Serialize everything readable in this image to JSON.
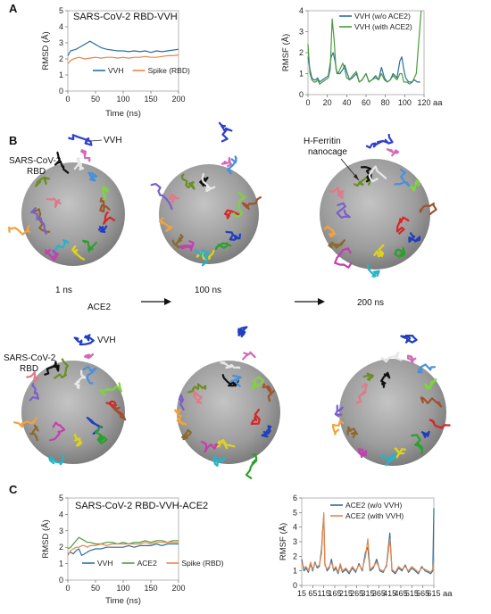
{
  "panels": {
    "A": "A",
    "B": "B",
    "C": "C"
  },
  "chart_data": [
    {
      "id": "a-rmsd",
      "type": "line",
      "title": "SARS-CoV-2 RBD-VVH",
      "xlabel": "Time (ns)",
      "ylabel": "RMSD (Å)",
      "xlim": [
        0,
        200
      ],
      "ylim": [
        0,
        5
      ],
      "xticks": [
        0,
        50,
        100,
        150,
        200
      ],
      "yticks": [
        0,
        1,
        2,
        3,
        4,
        5
      ],
      "grid": false,
      "legend": "bottom-center",
      "series": [
        {
          "name": "VVH",
          "color": "#2b6f9e",
          "x": [
            0,
            5,
            10,
            15,
            20,
            25,
            30,
            35,
            40,
            45,
            50,
            55,
            60,
            70,
            80,
            90,
            100,
            110,
            120,
            130,
            140,
            150,
            160,
            170,
            180,
            190,
            200
          ],
          "y": [
            2.2,
            2.5,
            2.55,
            2.6,
            2.7,
            2.8,
            2.9,
            3.0,
            3.1,
            3.0,
            2.9,
            2.8,
            2.7,
            2.6,
            2.55,
            2.5,
            2.5,
            2.45,
            2.5,
            2.45,
            2.5,
            2.4,
            2.5,
            2.45,
            2.5,
            2.55,
            2.6
          ]
        },
        {
          "name": "Spike (RBD)",
          "color": "#e8854a",
          "x": [
            0,
            5,
            10,
            15,
            20,
            25,
            30,
            40,
            50,
            60,
            70,
            80,
            90,
            100,
            110,
            120,
            130,
            140,
            150,
            160,
            170,
            180,
            190,
            200
          ],
          "y": [
            1.7,
            1.9,
            2.0,
            2.05,
            2.1,
            2.05,
            2.0,
            2.05,
            2.1,
            2.05,
            2.1,
            2.1,
            2.05,
            2.1,
            2.05,
            2.1,
            2.1,
            2.15,
            2.1,
            2.1,
            2.15,
            2.2,
            2.2,
            2.25
          ]
        }
      ]
    },
    {
      "id": "a-rmsf",
      "type": "line",
      "xlabel": "aa",
      "ylabel": "RMSF (Å)",
      "xlim": [
        0,
        120
      ],
      "ylim": [
        0,
        4
      ],
      "xticks": [
        0,
        20,
        40,
        60,
        80,
        100,
        120
      ],
      "yticks": [
        0,
        1,
        2,
        3,
        4
      ],
      "grid": false,
      "legend": "top-right",
      "series": [
        {
          "name": "VVH (w/o ACE2)",
          "color": "#2b6f9e",
          "x": [
            0,
            2,
            4,
            6,
            8,
            10,
            12,
            15,
            18,
            21,
            24,
            26,
            28,
            30,
            33,
            36,
            38,
            40,
            43,
            46,
            50,
            53,
            56,
            60,
            63,
            66,
            70,
            73,
            76,
            79,
            82,
            85,
            88,
            92,
            95,
            97,
            99,
            101,
            104,
            107,
            110,
            113,
            116
          ],
          "y": [
            1.8,
            1.2,
            0.8,
            0.7,
            0.7,
            0.8,
            0.6,
            0.7,
            0.8,
            0.9,
            1.8,
            2.0,
            1.6,
            1.0,
            1.0,
            1.2,
            1.4,
            1.1,
            0.7,
            0.8,
            1.0,
            0.6,
            0.7,
            1.0,
            0.6,
            0.7,
            0.9,
            0.7,
            1.3,
            0.8,
            0.6,
            0.7,
            1.0,
            0.8,
            1.6,
            1.8,
            1.2,
            0.8,
            0.6,
            0.6,
            0.7,
            0.6,
            0.6
          ]
        },
        {
          "name": "VVH (with ACE2)",
          "color": "#4e9a3b",
          "x": [
            0,
            2,
            4,
            6,
            8,
            10,
            12,
            15,
            18,
            21,
            23,
            25,
            27,
            29,
            31,
            34,
            36,
            38,
            40,
            43,
            46,
            50,
            53,
            56,
            60,
            63,
            66,
            70,
            73,
            76,
            79,
            82,
            85,
            88,
            92,
            95,
            97,
            99,
            102,
            105,
            108,
            112,
            115,
            117
          ],
          "y": [
            2.4,
            1.0,
            0.7,
            0.6,
            0.6,
            0.7,
            0.5,
            0.6,
            0.7,
            0.8,
            1.2,
            3.6,
            2.6,
            1.2,
            1.0,
            1.3,
            1.5,
            1.2,
            0.8,
            0.7,
            0.9,
            1.1,
            0.6,
            0.7,
            1.0,
            0.6,
            0.7,
            0.8,
            0.7,
            1.0,
            0.7,
            0.6,
            0.7,
            0.9,
            0.7,
            1.0,
            1.0,
            0.6,
            0.6,
            0.5,
            0.6,
            1.0,
            2.8,
            4.0
          ]
        }
      ]
    },
    {
      "id": "c-rmsd",
      "type": "line",
      "title": "SARS-CoV-2 RBD-VVH-ACE2",
      "xlabel": "Time (ns)",
      "ylabel": "RMSD (Å)",
      "xlim": [
        0,
        200
      ],
      "ylim": [
        0,
        5
      ],
      "xticks": [
        0,
        50,
        100,
        150,
        200
      ],
      "yticks": [
        0,
        1,
        2,
        3,
        4,
        5
      ],
      "grid": false,
      "legend": "bottom-center",
      "series": [
        {
          "name": "VVH",
          "color": "#2b6f9e",
          "x": [
            0,
            5,
            10,
            15,
            20,
            25,
            30,
            35,
            40,
            50,
            60,
            70,
            80,
            90,
            100,
            110,
            120,
            130,
            140,
            150,
            160,
            170,
            180,
            190,
            200
          ],
          "y": [
            1.6,
            1.7,
            1.6,
            1.8,
            1.9,
            1.5,
            1.6,
            1.7,
            1.8,
            1.9,
            1.9,
            2.0,
            2.0,
            2.0,
            2.0,
            2.1,
            2.0,
            2.1,
            2.1,
            2.1,
            2.2,
            2.1,
            2.2,
            2.2,
            2.2
          ]
        },
        {
          "name": "ACE2",
          "color": "#4e9a3b",
          "x": [
            0,
            5,
            10,
            15,
            20,
            25,
            30,
            35,
            40,
            50,
            60,
            70,
            80,
            90,
            100,
            110,
            120,
            130,
            140,
            150,
            160,
            170,
            180,
            190,
            200
          ],
          "y": [
            1.9,
            2.0,
            2.2,
            2.4,
            2.6,
            2.5,
            2.4,
            2.3,
            2.3,
            2.2,
            2.2,
            2.3,
            2.3,
            2.2,
            2.3,
            2.2,
            2.3,
            2.3,
            2.4,
            2.3,
            2.4,
            2.4,
            2.3,
            2.4,
            2.4
          ]
        },
        {
          "name": "Spike (RBD)",
          "color": "#e8854a",
          "x": [
            0,
            5,
            10,
            15,
            20,
            25,
            30,
            35,
            40,
            50,
            60,
            70,
            80,
            90,
            100,
            110,
            120,
            130,
            140,
            150,
            160,
            170,
            180,
            190,
            200
          ],
          "y": [
            1.5,
            1.8,
            1.9,
            2.0,
            2.0,
            2.1,
            2.1,
            2.0,
            2.1,
            2.1,
            2.2,
            2.1,
            2.2,
            2.2,
            2.2,
            2.2,
            2.2,
            2.2,
            2.3,
            2.2,
            2.3,
            2.3,
            2.3,
            2.3,
            2.3
          ]
        }
      ]
    },
    {
      "id": "c-rmsf",
      "type": "line",
      "xlabel": "aa",
      "ylabel": "RMSF (Å)",
      "xlim": [
        15,
        615
      ],
      "ylim": [
        0,
        6
      ],
      "xticks": [
        15,
        65,
        115,
        165,
        215,
        265,
        315,
        365,
        415,
        465,
        515,
        565,
        615
      ],
      "yticks": [
        0,
        1,
        2,
        3,
        4,
        5,
        6
      ],
      "grid": false,
      "legend": "top-right",
      "series": [
        {
          "name": "ACE2 (w/o VVH)",
          "color": "#2b6f9e",
          "x": [
            15,
            25,
            35,
            45,
            55,
            65,
            75,
            85,
            95,
            105,
            110,
            115,
            120,
            130,
            140,
            150,
            160,
            170,
            180,
            190,
            200,
            215,
            230,
            245,
            260,
            275,
            290,
            305,
            315,
            325,
            340,
            355,
            370,
            385,
            400,
            415,
            425,
            440,
            455,
            470,
            485,
            500,
            515,
            530,
            545,
            560,
            575,
            590,
            600,
            610,
            615
          ],
          "y": [
            1.8,
            1.0,
            1.2,
            0.9,
            1.5,
            1.0,
            1.6,
            1.2,
            1.3,
            2.5,
            3.8,
            4.8,
            1.5,
            1.0,
            1.2,
            1.8,
            1.0,
            1.2,
            0.8,
            1.4,
            0.9,
            1.1,
            0.8,
            1.2,
            0.9,
            1.5,
            1.0,
            2.3,
            2.6,
            1.0,
            1.2,
            1.8,
            1.0,
            0.9,
            1.4,
            3.6,
            1.0,
            0.8,
            1.2,
            1.0,
            1.4,
            0.9,
            1.2,
            1.0,
            0.8,
            1.3,
            1.0,
            0.9,
            0.8,
            1.0,
            5.3
          ]
        },
        {
          "name": "ACE2 (with VVH)",
          "color": "#e8854a",
          "x": [
            15,
            25,
            35,
            45,
            55,
            65,
            75,
            85,
            95,
            105,
            110,
            115,
            120,
            130,
            140,
            150,
            160,
            170,
            180,
            190,
            200,
            215,
            230,
            245,
            260,
            275,
            290,
            305,
            315,
            325,
            340,
            355,
            370,
            385,
            400,
            415,
            425,
            440,
            455,
            470,
            485,
            500,
            515,
            530,
            545,
            560,
            575,
            590,
            600,
            610,
            615
          ],
          "y": [
            1.6,
            1.2,
            1.3,
            1.0,
            1.6,
            1.1,
            1.5,
            1.3,
            1.4,
            2.2,
            3.6,
            5.0,
            1.4,
            1.1,
            1.3,
            1.6,
            1.1,
            1.3,
            0.9,
            1.5,
            1.0,
            1.2,
            0.9,
            1.3,
            1.0,
            1.4,
            1.1,
            2.0,
            3.2,
            1.1,
            1.3,
            1.6,
            1.1,
            1.0,
            1.3,
            3.2,
            1.1,
            0.9,
            1.3,
            1.1,
            1.3,
            1.0,
            1.3,
            1.1,
            0.9,
            1.2,
            1.1,
            1.0,
            0.9,
            1.1,
            1.8
          ]
        }
      ]
    }
  ],
  "panel_b": {
    "time_labels": [
      "1 ns",
      "100 ns",
      "200 ns"
    ],
    "top_labels": {
      "vvh": "VVH",
      "rbd_line1": "SARS-CoV-2",
      "rbd_line2": "RBD",
      "ferritin_line1": "H-Ferritin",
      "ferritin_line2": "nanocage"
    },
    "bottom_labels": {
      "ace2": "ACE2",
      "vvh": "VVH",
      "rbd_line1": "SARS-CoV-2",
      "rbd_line2": "RBD"
    },
    "protein_colors": [
      "#d62728",
      "#1f3fbf",
      "#2ca02c",
      "#e0d21a",
      "#27b3c9",
      "#c43fb0",
      "#8b6a2b",
      "#f2a23a",
      "#7b5fc9",
      "#e07a8a",
      "#6b8e23",
      "#111111",
      "#e8e8e8",
      "#4a90d9",
      "#7fd33f",
      "#a0522d"
    ]
  }
}
